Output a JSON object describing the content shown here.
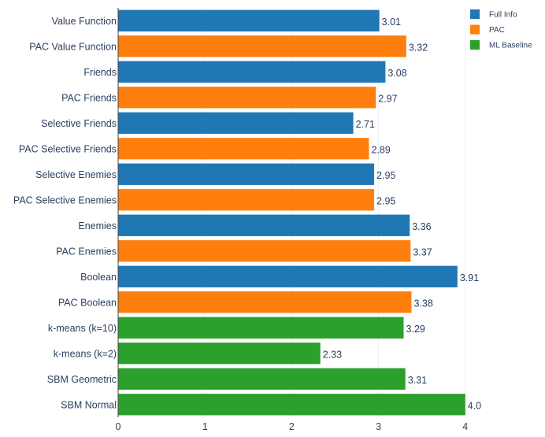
{
  "chart_data": {
    "type": "bar",
    "orientation": "horizontal",
    "categories": [
      "Value Function",
      "PAC Value Function",
      "Friends",
      "PAC Friends",
      "Selective Friends",
      "PAC Selective Friends",
      "Selective Enemies",
      "PAC Selective Enemies",
      "Enemies",
      "PAC Enemies",
      "Boolean",
      "PAC Boolean",
      "k-means (k=10)",
      "k-means (k=2)",
      "SBM Geometric",
      "SBM Normal"
    ],
    "values": [
      3.01,
      3.32,
      3.08,
      2.97,
      2.71,
      2.89,
      2.95,
      2.95,
      3.36,
      3.37,
      3.91,
      3.38,
      3.29,
      2.33,
      3.31,
      4.0
    ],
    "value_labels": [
      "3.01",
      "3.32",
      "3.08",
      "2.97",
      "2.71",
      "2.89",
      "2.95",
      "2.95",
      "3.36",
      "3.37",
      "3.91",
      "3.38",
      "3.29",
      "2.33",
      "3.31",
      "4.0"
    ],
    "groups": [
      "Full Info",
      "PAC",
      "Full Info",
      "PAC",
      "Full Info",
      "PAC",
      "Full Info",
      "PAC",
      "Full Info",
      "PAC",
      "Full Info",
      "PAC",
      "ML Baseline",
      "ML Baseline",
      "ML Baseline",
      "ML Baseline"
    ],
    "legend": [
      {
        "name": "Full Info",
        "color": "#1f77b4"
      },
      {
        "name": "PAC",
        "color": "#ff7f0e"
      },
      {
        "name": "ML Baseline",
        "color": "#2ca02c"
      }
    ],
    "legend_position": "top-right",
    "xticks": [
      "0",
      "1",
      "2",
      "3",
      "4"
    ],
    "xlim": [
      0,
      4.22
    ],
    "grid": true,
    "title": "",
    "xlabel": "",
    "ylabel": ""
  }
}
